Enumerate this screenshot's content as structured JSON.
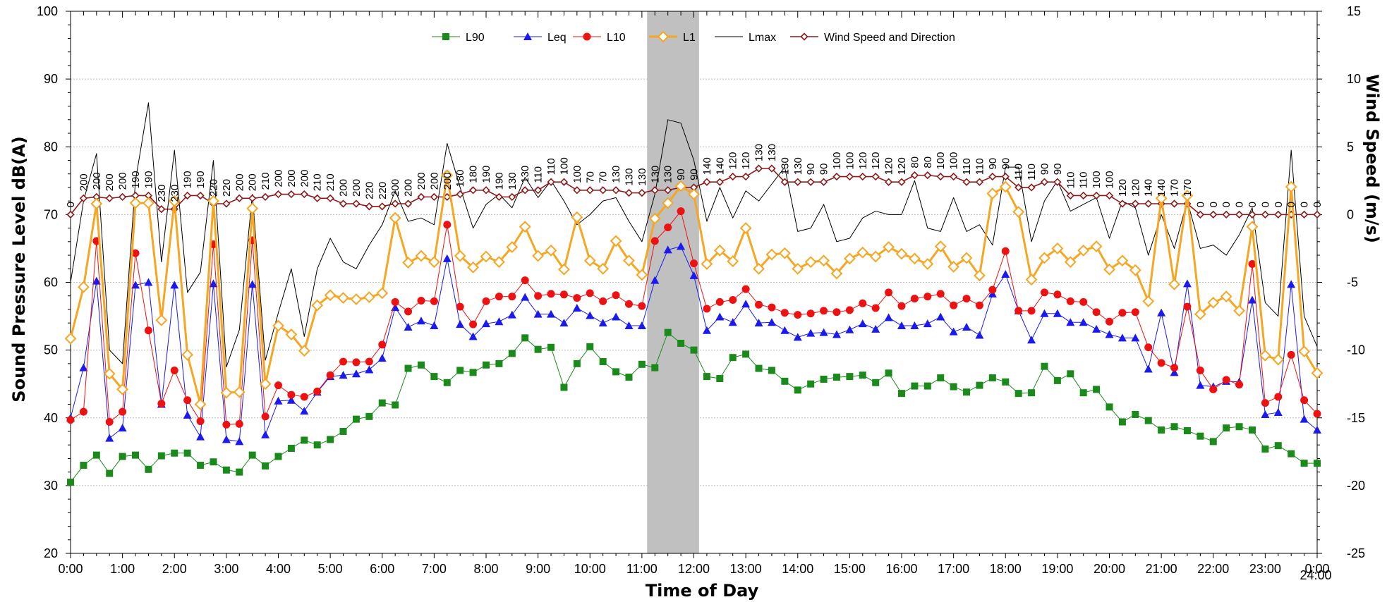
{
  "chart_data": {
    "type": "line",
    "title": "",
    "xlabel": "Time of Day",
    "ylabel": "Sound Pressure Level dB(A)",
    "y2label": "Wind Speed (m/s)",
    "ylim": [
      20,
      100
    ],
    "y2lim": [
      -25,
      15
    ],
    "xlim_hours": [
      0,
      24
    ],
    "x_tick_labels": [
      "0:00",
      "1:00",
      "2:00",
      "3:00",
      "4:00",
      "5:00",
      "6:00",
      "7:00",
      "8:00",
      "9:00",
      "10:00",
      "11:00",
      "12:00",
      "13:00",
      "14:00",
      "15:00",
      "16:00",
      "17:00",
      "18:00",
      "19:00",
      "20:00",
      "21:00",
      "22:00",
      "23:00",
      "0:00"
    ],
    "x_end_label": "24:00",
    "y_ticks": [
      20,
      30,
      40,
      50,
      60,
      70,
      80,
      90,
      100
    ],
    "y2_ticks": [
      -25,
      -20,
      -15,
      -10,
      -5,
      0,
      5,
      10,
      15
    ],
    "grid": true,
    "legend_position": "top-center",
    "highlight_band_hours": [
      11.1,
      12.1
    ],
    "series": [
      {
        "name": "L90",
        "color": "#1a8a1a",
        "marker": "square",
        "values": [
          30.5,
          33,
          34.5,
          31.8,
          34.3,
          34.5,
          32.4,
          34.4,
          34.8,
          34.8,
          33,
          33.5,
          32.3,
          32,
          34.5,
          32.9,
          34.3,
          35.5,
          36.7,
          36,
          36.8,
          38,
          39.8,
          40.2,
          42.2,
          41.9,
          47.3,
          47.8,
          46.1,
          45.2,
          47,
          46.7,
          47.8,
          48,
          49.5,
          51.8,
          50.1,
          50.4,
          44.5,
          48,
          50.5,
          48.3,
          46.8,
          46,
          47.9,
          47.4,
          52.6,
          51,
          50,
          46.1,
          45.8,
          48.9,
          49.4,
          47.3,
          47,
          45.4,
          44.1,
          45,
          45.7,
          46,
          46.1,
          46.3,
          45.2,
          46.6,
          43.6,
          44.7,
          44.7,
          45.9,
          44.6,
          43.8,
          44.8,
          45.9,
          45.3,
          43.6,
          43.7,
          47.6,
          45.5,
          46.5,
          43.7,
          44.2,
          41.6,
          39.4,
          40.5,
          39.6,
          38.2,
          38.7,
          38.1,
          37.3,
          36.5,
          38.5,
          38.7,
          38.2,
          35.4,
          35.9,
          34.7,
          33.3,
          33.3
        ]
      },
      {
        "name": "Leq",
        "color": "#1a1aee",
        "marker": "triangle",
        "values": [
          40,
          47.4,
          60.2,
          37,
          38.5,
          59.6,
          60,
          42,
          59.6,
          40.4,
          37.2,
          59.8,
          36.8,
          36.5,
          59.7,
          37.5,
          42.5,
          42.6,
          41,
          43.8,
          46.1,
          46.3,
          46.5,
          47.1,
          48.8,
          56.3,
          53.4,
          54.3,
          53.6,
          63.5,
          53.8,
          52,
          53.9,
          54.2,
          55.2,
          57.8,
          55.3,
          55.3,
          54,
          56.2,
          55.1,
          54,
          54.9,
          53.6,
          53.6,
          60.3,
          64.8,
          65.3,
          61,
          52.9,
          54.9,
          54.1,
          56.8,
          54,
          54.1,
          52.9,
          51.9,
          52.5,
          52.6,
          52.3,
          53,
          53.9,
          53.1,
          54.8,
          53.6,
          53.6,
          53.9,
          54.9,
          52.7,
          53.4,
          52.2,
          58.3,
          61.2,
          55.8,
          51.5,
          55.4,
          55.4,
          54.1,
          54.1,
          53.1,
          52.3,
          51.8,
          51.8,
          47.2,
          55.5,
          46.7,
          59.8,
          44.8,
          44.6,
          45.4,
          45.3,
          57.4,
          40.5,
          40.8,
          59.7,
          39.8,
          38.2
        ]
      },
      {
        "name": "L10",
        "color": "#ee1111",
        "marker": "circle",
        "values": [
          39.7,
          40.9,
          66.1,
          39.4,
          40.9,
          64.3,
          52.9,
          42.1,
          47,
          42.6,
          39.5,
          65.6,
          39,
          39.1,
          66.2,
          40.2,
          44.8,
          43.4,
          43.1,
          43.9,
          46.3,
          48.3,
          48.2,
          48.3,
          50.8,
          57.1,
          55.7,
          57.3,
          57.2,
          68.5,
          56.4,
          53.8,
          57.2,
          57.9,
          57.9,
          60.3,
          58,
          58.3,
          58.2,
          57.7,
          58.4,
          57.2,
          58.1,
          56.8,
          56.5,
          66.1,
          68.1,
          70.5,
          62.8,
          56.1,
          57.1,
          57.4,
          59,
          56.7,
          56.3,
          55.5,
          55.2,
          55.4,
          55.8,
          55.6,
          55.9,
          56.9,
          56.2,
          58.5,
          56.5,
          57.6,
          57.9,
          58.3,
          56.6,
          57.6,
          56.6,
          58.9,
          64.6,
          55.8,
          55.8,
          58.5,
          58.2,
          57.2,
          57.1,
          55.6,
          54.2,
          55.5,
          55.6,
          50.4,
          48.1,
          47.4,
          56.4,
          47,
          44.2,
          45.6,
          44.9,
          62.7,
          42.2,
          43.1,
          49.3,
          42.6,
          40.6
        ]
      },
      {
        "name": "L1",
        "color": "#f5a623",
        "marker": "diamond",
        "values": [
          51.7,
          59.3,
          71.6,
          46.5,
          44.2,
          71.7,
          71.7,
          54.4,
          72,
          49.3,
          42,
          72,
          43.7,
          43.8,
          70.9,
          45,
          53.6,
          52.3,
          49.9,
          56.6,
          58.1,
          57.7,
          57.5,
          57.8,
          58.4,
          69.5,
          62.9,
          63.9,
          63,
          75.8,
          63.9,
          62.2,
          63.8,
          63,
          65.2,
          68.2,
          63.9,
          64.7,
          61.9,
          69.6,
          63.2,
          62,
          66.1,
          63.2,
          61.1,
          69.4,
          71.7,
          74.2,
          73,
          62.7,
          64.7,
          63.1,
          68,
          62,
          64.1,
          64.3,
          62,
          63,
          63.2,
          61.3,
          63.5,
          64.4,
          63.8,
          65.2,
          64.2,
          63.5,
          62.7,
          65.3,
          62.3,
          63.6,
          61,
          73.1,
          74.1,
          70.4,
          60.4,
          63.6,
          65,
          63,
          64.7,
          65.3,
          61.9,
          63.2,
          61.8,
          57.2,
          72.4,
          59.7,
          72.8,
          55.3,
          57,
          57.9,
          55.8,
          68.2,
          49.2,
          48.6,
          74.1,
          49.8,
          46.6
        ]
      },
      {
        "name": "Lmax",
        "color": "#000000",
        "marker": "none",
        "values": [
          60,
          72,
          79,
          50,
          48,
          75,
          86.5,
          63,
          79.5,
          58.5,
          61.5,
          78,
          47.5,
          53,
          73,
          48.5,
          55.5,
          62,
          52,
          62,
          66.5,
          63,
          62,
          65.5,
          68.5,
          73.5,
          69,
          69.5,
          68.5,
          80.5,
          74,
          68,
          71.5,
          73,
          71,
          75.5,
          72.5,
          75,
          72,
          68.5,
          70,
          72,
          72.5,
          69,
          66,
          73,
          84,
          83.5,
          78,
          69,
          74,
          69.5,
          73.5,
          72,
          74.5,
          77,
          67.5,
          68,
          71.5,
          66,
          66.5,
          69.5,
          70.5,
          70,
          70,
          75,
          68,
          67.5,
          72.5,
          67.5,
          68.5,
          65.5,
          77,
          77,
          66,
          72,
          75,
          70.5,
          71.5,
          72.5,
          66.5,
          72,
          71,
          64,
          70,
          65,
          72,
          65,
          65.5,
          64,
          67,
          71,
          57,
          55,
          79.5,
          55,
          50.5
        ]
      },
      {
        "name": "Wind Speed and Direction",
        "color": "#8b1a1a",
        "marker": "diamond-small",
        "axis": "y2",
        "values": [
          0,
          1.2,
          1.3,
          1.2,
          1.3,
          1.4,
          1.4,
          0.4,
          0.4,
          1.4,
          1.4,
          0.8,
          0.8,
          1.2,
          1.2,
          1.3,
          1.5,
          1.5,
          1.5,
          1.2,
          1.2,
          0.8,
          0.8,
          0.6,
          0.6,
          0.8,
          0.8,
          1.3,
          1.3,
          1.3,
          1.5,
          1.8,
          1.8,
          1.3,
          1.3,
          1.8,
          1.8,
          2.4,
          2.4,
          1.8,
          1.8,
          1.8,
          1.8,
          1.6,
          1.6,
          1.8,
          1.8,
          2,
          2,
          2.4,
          2.4,
          2.8,
          2.8,
          3.4,
          3.4,
          2.4,
          2.4,
          2.4,
          2.4,
          2.8,
          2.8,
          2.8,
          2.8,
          2.4,
          2.4,
          2.9,
          2.9,
          2.8,
          2.8,
          2.4,
          2.4,
          2.8,
          2.8,
          2,
          2,
          2.4,
          2.4,
          1.4,
          1.4,
          1.4,
          1.4,
          0.8,
          0.8,
          0.8,
          0.8,
          0.8,
          0.8,
          0,
          0,
          0,
          0,
          0,
          0,
          0,
          0,
          0,
          0
        ]
      }
    ],
    "wind_direction_labels": [
      "0",
      "200",
      "200",
      "200",
      "200",
      "190",
      "190",
      "230",
      "230",
      "190",
      "190",
      "220",
      "220",
      "200",
      "200",
      "210",
      "200",
      "200",
      "200",
      "210",
      "210",
      "200",
      "200",
      "220",
      "220",
      "200",
      "200",
      "200",
      "200",
      "200",
      "180",
      "180",
      "190",
      "190",
      "130",
      "130",
      "110",
      "110",
      "100",
      "100",
      "70",
      "70",
      "130",
      "130",
      "130",
      "130",
      "130",
      "90",
      "90",
      "140",
      "140",
      "120",
      "120",
      "130",
      "130",
      "130",
      "130",
      "90",
      "90",
      "100",
      "100",
      "120",
      "120",
      "120",
      "120",
      "80",
      "80",
      "100",
      "100",
      "110",
      "110",
      "90",
      "90",
      "110",
      "110",
      "90",
      "90",
      "110",
      "110",
      "100",
      "100",
      "120",
      "120",
      "140",
      "140",
      "170",
      "170",
      "0",
      "0",
      "0",
      "0",
      "0",
      "0",
      "0",
      "0",
      "0",
      "0"
    ]
  }
}
